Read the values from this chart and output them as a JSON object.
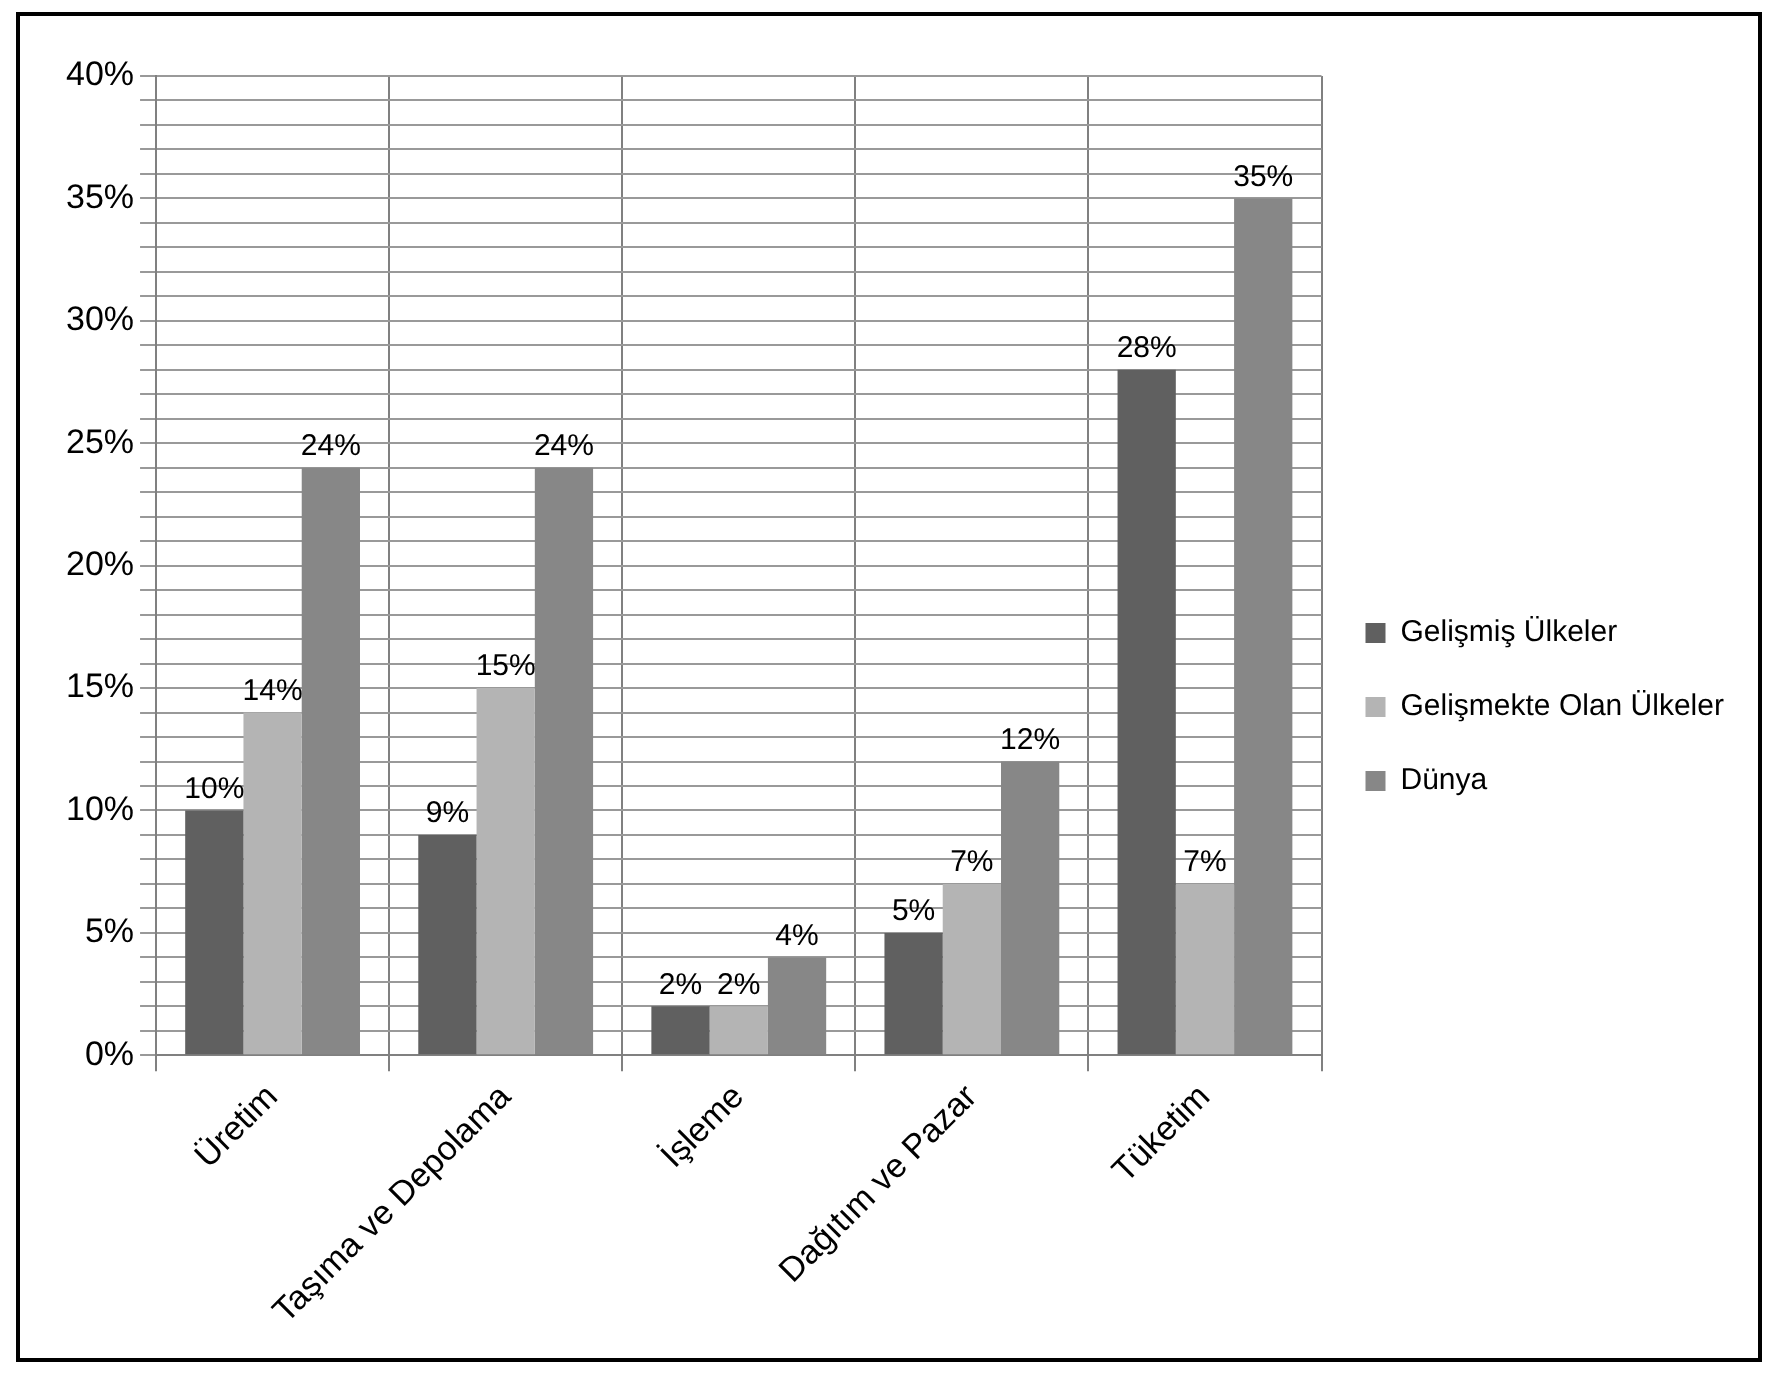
{
  "chart_data": {
    "type": "bar",
    "categories": [
      "Üretim",
      "Taşıma ve Depolama",
      "İşleme",
      "Dağıtım ve Pazar",
      "Tüketim"
    ],
    "series": [
      {
        "name": "Gelişmiş Ülkeler",
        "color": "#606060",
        "values": [
          10,
          9,
          2,
          5,
          28
        ],
        "value_labels": [
          "10%",
          "9%",
          "2%",
          "5%",
          "28%"
        ]
      },
      {
        "name": "Gelişmekte Olan Ülkeler",
        "color": "#b4b4b4",
        "values": [
          14,
          15,
          2,
          7,
          7
        ],
        "value_labels": [
          "14%",
          "15%",
          "2%",
          "7%",
          "7%"
        ]
      },
      {
        "name": "Dünya",
        "color": "#878787",
        "values": [
          24,
          24,
          4,
          12,
          35
        ],
        "value_labels": [
          "24%",
          "24%",
          "4%",
          "12%",
          "35%"
        ]
      }
    ],
    "ylim": [
      0,
      40
    ],
    "yticks": [
      {
        "value": 0,
        "label": "0%"
      },
      {
        "value": 1,
        "label": null
      },
      {
        "value": 2,
        "label": null
      },
      {
        "value": 3,
        "label": null
      },
      {
        "value": 4,
        "label": null
      },
      {
        "value": 5,
        "label": "5%"
      },
      {
        "value": 6,
        "label": null
      },
      {
        "value": 7,
        "label": null
      },
      {
        "value": 8,
        "label": null
      },
      {
        "value": 9,
        "label": null
      },
      {
        "value": 10,
        "label": "10%"
      },
      {
        "value": 11,
        "label": null
      },
      {
        "value": 12,
        "label": null
      },
      {
        "value": 13,
        "label": null
      },
      {
        "value": 14,
        "label": null
      },
      {
        "value": 15,
        "label": "15%"
      },
      {
        "value": 16,
        "label": null
      },
      {
        "value": 17,
        "label": null
      },
      {
        "value": 18,
        "label": null
      },
      {
        "value": 19,
        "label": null
      },
      {
        "value": 20,
        "label": "20%"
      },
      {
        "value": 21,
        "label": null
      },
      {
        "value": 22,
        "label": null
      },
      {
        "value": 23,
        "label": null
      },
      {
        "value": 24,
        "label": null
      },
      {
        "value": 25,
        "label": "25%"
      },
      {
        "value": 26,
        "label": null
      },
      {
        "value": 27,
        "label": null
      },
      {
        "value": 28,
        "label": null
      },
      {
        "value": 29,
        "label": null
      },
      {
        "value": 30,
        "label": "30%"
      },
      {
        "value": 31,
        "label": null
      },
      {
        "value": 32,
        "label": null
      },
      {
        "value": 33,
        "label": null
      },
      {
        "value": 34,
        "label": null
      },
      {
        "value": 35,
        "label": "35%"
      },
      {
        "value": 36,
        "label": null
      },
      {
        "value": 37,
        "label": null
      },
      {
        "value": 38,
        "label": null
      },
      {
        "value": 39,
        "label": null
      },
      {
        "value": 40,
        "label": "40%"
      }
    ],
    "grid": true,
    "legend": "right"
  }
}
